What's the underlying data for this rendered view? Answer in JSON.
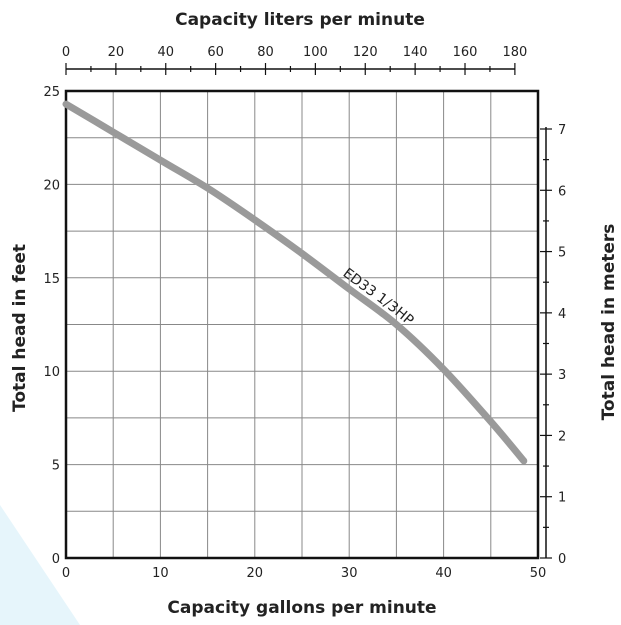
{
  "chart_data": {
    "type": "line",
    "title": "",
    "xlabel": "Capacity gallons per minute",
    "ylabel": "Total head in feet",
    "x2label": "Capacity liters per minute",
    "y2label": "Total head in meters",
    "xlim": [
      0,
      50
    ],
    "ylim": [
      0,
      25
    ],
    "x2lim": [
      0,
      189.27
    ],
    "y2lim": [
      0,
      7.62
    ],
    "x_ticks": [
      "0",
      "10",
      "20",
      "30",
      "40",
      "50"
    ],
    "y_ticks": [
      "0",
      "5",
      "10",
      "15",
      "20",
      "25"
    ],
    "x2_ticks": [
      "0",
      "20",
      "40",
      "60",
      "80",
      "100",
      "120",
      "140",
      "160",
      "180"
    ],
    "y2_ticks": [
      "0",
      "1",
      "2",
      "3",
      "4",
      "5",
      "6",
      "7"
    ],
    "grid": true,
    "series": [
      {
        "name": "ED33  1/3HP",
        "color": "#9a9a9a",
        "x": [
          0,
          5,
          10,
          15,
          20,
          25,
          30,
          35,
          40,
          45,
          48.5
        ],
        "y": [
          24.3,
          22.8,
          21.3,
          19.8,
          18.1,
          16.3,
          14.4,
          12.5,
          10.1,
          7.3,
          5.2
        ]
      }
    ]
  }
}
